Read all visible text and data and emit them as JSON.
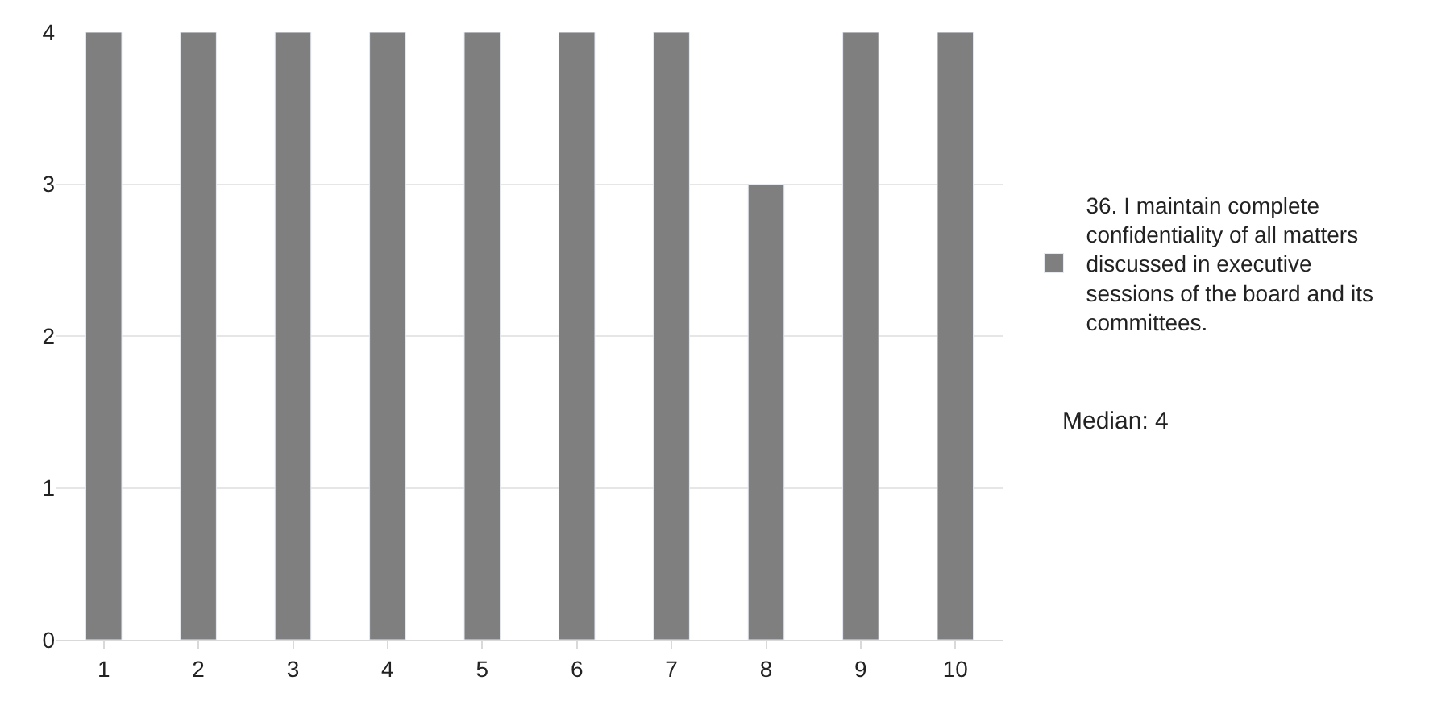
{
  "chart_data": {
    "type": "bar",
    "categories": [
      "1",
      "2",
      "3",
      "4",
      "5",
      "6",
      "7",
      "8",
      "9",
      "10"
    ],
    "series": [
      {
        "name": "36. I maintain complete confidentiality of all matters discussed in executive sessions of the board and its committees.",
        "color": "#7f7f7f",
        "values": [
          4,
          4,
          4,
          4,
          4,
          4,
          4,
          3,
          4,
          4
        ]
      }
    ],
    "ylim": [
      0,
      4
    ],
    "yticks": [
      0,
      1,
      2,
      3,
      4
    ],
    "grid": "y",
    "legend": "right",
    "annotations": [
      "Median: 4"
    ]
  }
}
